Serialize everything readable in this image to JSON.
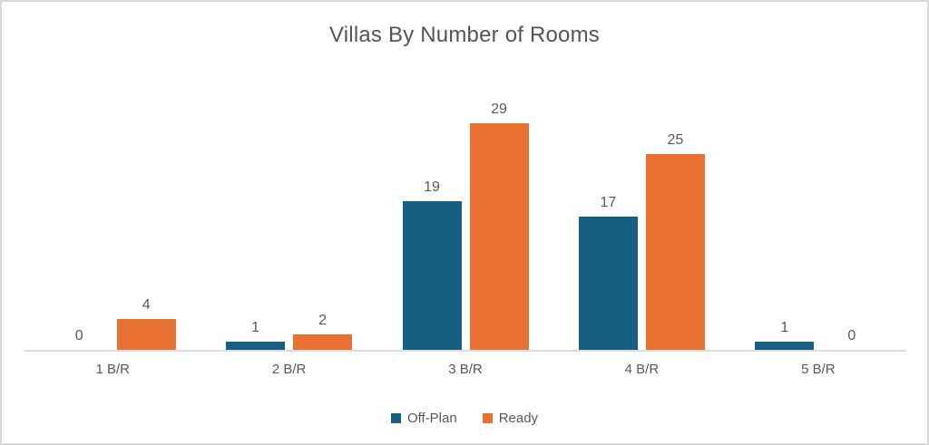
{
  "chart_data": {
    "type": "bar",
    "title": "Villas By Number of Rooms",
    "categories": [
      "1 B/R",
      "2 B/R",
      "3 B/R",
      "4 B/R",
      "5 B/R"
    ],
    "series": [
      {
        "name": "Off-Plan",
        "color": "#156082",
        "values": [
          0,
          1,
          19,
          17,
          1
        ]
      },
      {
        "name": "Ready",
        "color": "#E97132",
        "values": [
          4,
          2,
          29,
          25,
          0
        ]
      }
    ],
    "ylim": [
      0,
      29
    ],
    "grid": false,
    "axis_visible": false,
    "data_labels": true,
    "legend_position": "bottom",
    "axis_line_color": "#dcdcdc",
    "label_color": "#595959",
    "title_color": "#555555"
  }
}
